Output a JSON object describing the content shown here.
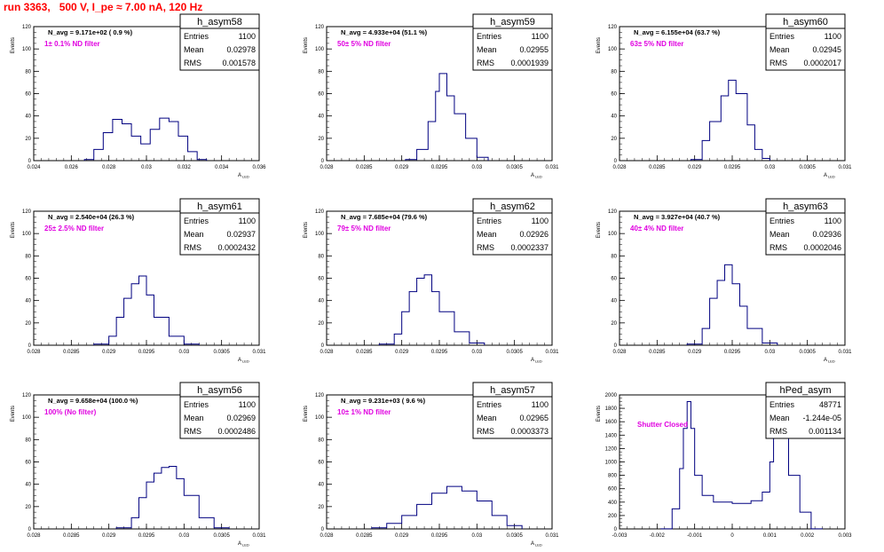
{
  "header": {
    "title": "run 3363,   500 V, I_pe ≈ 7.00 nA, 120 Hz"
  },
  "colors": {
    "histogram_line": "#000080",
    "annotation": "#e000e0",
    "title_text": "#ff0000",
    "frame": "#000000"
  },
  "stats_labels": {
    "entries": "Entries",
    "mean": "Mean",
    "rms": "RMS"
  },
  "ylabel": "Events",
  "chart_data": [
    {
      "type": "histogram",
      "name": "h_asym58",
      "navg": "N_avg = 9.171e+02 ( 0.9 %)",
      "filter": "1± 0.1% ND filter",
      "entries": "1100",
      "mean": "0.02978",
      "rms": "0.001578",
      "xlabel": "A_LED",
      "ylabel": "Events",
      "xlim": [
        0.024,
        0.036
      ],
      "ylim": [
        0,
        120
      ],
      "xticks": [
        0.024,
        0.026,
        0.028,
        0.03,
        0.032,
        0.034,
        0.036
      ],
      "xticklabels": [
        "0.024",
        "0.026",
        "0.028",
        "0.03",
        "0.032",
        "0.034",
        "0.036"
      ],
      "yticks": [
        0,
        20,
        40,
        60,
        80,
        100,
        120
      ],
      "x": [
        0.0267,
        0.0272,
        0.0277,
        0.0282,
        0.0287,
        0.0292,
        0.0297,
        0.0302,
        0.0307,
        0.0312,
        0.0317,
        0.0322,
        0.0327
      ],
      "values": [
        1,
        10,
        25,
        37,
        33,
        22,
        15,
        28,
        38,
        35,
        22,
        8,
        1
      ]
    },
    {
      "type": "histogram",
      "name": "h_asym59",
      "navg": "N_avg = 4.933e+04 (51.1 %)",
      "filter": "50± 5% ND filter",
      "entries": "1100",
      "mean": "0.02955",
      "rms": "0.0001939",
      "xlabel": "A_LED",
      "ylabel": "Events",
      "xlim": [
        0.028,
        0.031
      ],
      "ylim": [
        0,
        120
      ],
      "xticks": [
        0.028,
        0.0285,
        0.029,
        0.0295,
        0.03,
        0.0305,
        0.031
      ],
      "xticklabels": [
        "0.028",
        "0.0285",
        "0.029",
        "0.0295",
        "0.03",
        "0.0305",
        "0.031"
      ],
      "yticks": [
        0,
        20,
        40,
        60,
        80,
        100,
        120
      ],
      "x": [
        0.02905,
        0.0292,
        0.02935,
        0.02945,
        0.0295,
        0.0296,
        0.0297,
        0.02985,
        0.03
      ],
      "values": [
        1,
        10,
        35,
        62,
        78,
        58,
        42,
        20,
        3
      ]
    },
    {
      "type": "histogram",
      "name": "h_asym60",
      "navg": "N_avg = 6.155e+04 (63.7 %)",
      "filter": "63± 5% ND filter",
      "entries": "1100",
      "mean": "0.02945",
      "rms": "0.0002017",
      "xlabel": "A_LED",
      "ylabel": "Events",
      "xlim": [
        0.028,
        0.031
      ],
      "ylim": [
        0,
        120
      ],
      "xticks": [
        0.028,
        0.0285,
        0.029,
        0.0295,
        0.03,
        0.0305,
        0.031
      ],
      "xticklabels": [
        "0.028",
        "0.0285",
        "0.029",
        "0.0295",
        "0.03",
        "0.0305",
        "0.031"
      ],
      "yticks": [
        0,
        20,
        40,
        60,
        80,
        100,
        120
      ],
      "x": [
        0.02895,
        0.0291,
        0.0292,
        0.02935,
        0.02945,
        0.02955,
        0.0297,
        0.0298,
        0.0299
      ],
      "values": [
        1,
        18,
        35,
        58,
        72,
        60,
        32,
        10,
        2
      ]
    },
    {
      "type": "histogram",
      "name": "h_asym61",
      "navg": "N_avg = 2.540e+04 (26.3 %)",
      "filter": "25± 2.5% ND filter",
      "entries": "1100",
      "mean": "0.02937",
      "rms": "0.0002432",
      "xlabel": "A_LED",
      "ylabel": "Events",
      "xlim": [
        0.028,
        0.031
      ],
      "ylim": [
        0,
        120
      ],
      "xticks": [
        0.028,
        0.0285,
        0.029,
        0.0295,
        0.03,
        0.0305,
        0.031
      ],
      "xticklabels": [
        "0.028",
        "0.0285",
        "0.029",
        "0.0295",
        "0.03",
        "0.0305",
        "0.031"
      ],
      "yticks": [
        0,
        20,
        40,
        60,
        80,
        100,
        120
      ],
      "x": [
        0.0288,
        0.029,
        0.0291,
        0.0292,
        0.0293,
        0.0294,
        0.0295,
        0.0296,
        0.0298,
        0.03
      ],
      "values": [
        1,
        8,
        25,
        42,
        55,
        62,
        45,
        25,
        8,
        1
      ]
    },
    {
      "type": "histogram",
      "name": "h_asym62",
      "navg": "N_avg = 7.685e+04 (79.6 %)",
      "filter": "79± 5% ND filter",
      "entries": "1100",
      "mean": "0.02926",
      "rms": "0.0002337",
      "xlabel": "A_LED",
      "ylabel": "Events",
      "xlim": [
        0.028,
        0.031
      ],
      "ylim": [
        0,
        120
      ],
      "xticks": [
        0.028,
        0.0285,
        0.029,
        0.0295,
        0.03,
        0.0305,
        0.031
      ],
      "xticklabels": [
        "0.028",
        "0.0285",
        "0.029",
        "0.0295",
        "0.03",
        "0.0305",
        "0.031"
      ],
      "yticks": [
        0,
        20,
        40,
        60,
        80,
        100,
        120
      ],
      "x": [
        0.0287,
        0.0289,
        0.029,
        0.0291,
        0.0292,
        0.0293,
        0.0294,
        0.0295,
        0.0297,
        0.0299
      ],
      "values": [
        1,
        10,
        30,
        48,
        60,
        63,
        48,
        30,
        12,
        2
      ]
    },
    {
      "type": "histogram",
      "name": "h_asym63",
      "navg": "N_avg = 3.927e+04 (40.7 %)",
      "filter": "40± 4% ND filter",
      "entries": "1100",
      "mean": "0.02936",
      "rms": "0.0002046",
      "xlabel": "A_LED",
      "ylabel": "Events",
      "xlim": [
        0.028,
        0.031
      ],
      "ylim": [
        0,
        120
      ],
      "xticks": [
        0.028,
        0.0285,
        0.029,
        0.0295,
        0.03,
        0.0305,
        0.031
      ],
      "xticklabels": [
        "0.028",
        "0.0285",
        "0.029",
        "0.0295",
        "0.03",
        "0.0305",
        "0.031"
      ],
      "yticks": [
        0,
        20,
        40,
        60,
        80,
        100,
        120
      ],
      "x": [
        0.0289,
        0.0291,
        0.0292,
        0.0293,
        0.0294,
        0.0295,
        0.0296,
        0.0297,
        0.0299
      ],
      "values": [
        1,
        15,
        42,
        58,
        72,
        55,
        35,
        15,
        2
      ]
    },
    {
      "type": "histogram",
      "name": "h_asym56",
      "navg": "N_avg = 9.658e+04 (100.0 %)",
      "filter": "100% (No filter)",
      "entries": "1100",
      "mean": "0.02969",
      "rms": "0.0002486",
      "xlabel": "A_LED",
      "ylabel": "Events",
      "xlim": [
        0.028,
        0.031
      ],
      "ylim": [
        0,
        120
      ],
      "xticks": [
        0.028,
        0.0285,
        0.029,
        0.0295,
        0.03,
        0.0305,
        0.031
      ],
      "xticklabels": [
        "0.028",
        "0.0285",
        "0.029",
        "0.0295",
        "0.03",
        "0.0305",
        "0.031"
      ],
      "yticks": [
        0,
        20,
        40,
        60,
        80,
        100,
        120
      ],
      "x": [
        0.0291,
        0.0293,
        0.0294,
        0.0295,
        0.0296,
        0.0297,
        0.0298,
        0.0299,
        0.03,
        0.0302,
        0.0304
      ],
      "values": [
        1,
        10,
        28,
        42,
        50,
        55,
        56,
        45,
        30,
        10,
        1
      ]
    },
    {
      "type": "histogram",
      "name": "h_asym57",
      "navg": "N_avg = 9.231e+03 ( 9.6 %)",
      "filter": "10± 1% ND filter",
      "entries": "1100",
      "mean": "0.02965",
      "rms": "0.0003373",
      "xlabel": "A_LED",
      "ylabel": "Events",
      "xlim": [
        0.028,
        0.031
      ],
      "ylim": [
        0,
        120
      ],
      "xticks": [
        0.028,
        0.0285,
        0.029,
        0.0295,
        0.03,
        0.0305,
        0.031
      ],
      "xticklabels": [
        "0.028",
        "0.0285",
        "0.029",
        "0.0295",
        "0.03",
        "0.0305",
        "0.031"
      ],
      "yticks": [
        0,
        20,
        40,
        60,
        80,
        100,
        120
      ],
      "x": [
        0.0286,
        0.0288,
        0.029,
        0.0292,
        0.0294,
        0.0296,
        0.0298,
        0.03,
        0.0302,
        0.0304
      ],
      "values": [
        1,
        5,
        12,
        22,
        32,
        38,
        34,
        25,
        12,
        3
      ]
    },
    {
      "type": "histogram",
      "name": "hPed_asym",
      "navg": "",
      "filter": "Shutter Closed",
      "entries": "48771",
      "mean": "-1.244e-05",
      "rms": "0.001134",
      "xlabel": "",
      "ylabel": "Events",
      "xlim": [
        -0.003,
        0.003
      ],
      "ylim": [
        0,
        2000
      ],
      "xticks": [
        -0.003,
        -0.002,
        -0.001,
        0,
        0.001,
        0.002,
        0.003
      ],
      "xticklabels": [
        "-0.003",
        "-0.002",
        "-0.001",
        "0",
        "0.001",
        "0.002",
        "0.003"
      ],
      "yticks": [
        0,
        200,
        400,
        600,
        800,
        1000,
        1200,
        1400,
        1600,
        1800,
        2000
      ],
      "x": [
        -0.0019,
        -0.0016,
        -0.0014,
        -0.0013,
        -0.0012,
        -0.0011,
        -0.001,
        -0.0008,
        -0.0005,
        0,
        0.0005,
        0.0008,
        0.001,
        0.0011,
        0.0012,
        0.0013,
        0.0015,
        0.0018,
        0.0021
      ],
      "values": [
        2,
        300,
        900,
        1500,
        1900,
        1500,
        800,
        500,
        400,
        380,
        420,
        550,
        1000,
        1700,
        1800,
        1500,
        800,
        250,
        2
      ]
    }
  ]
}
